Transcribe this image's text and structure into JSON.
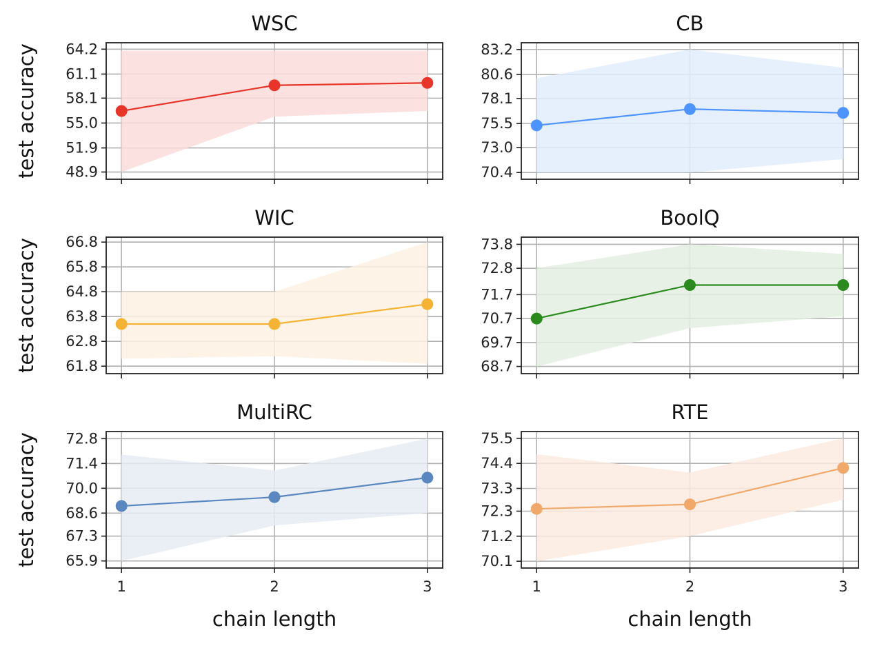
{
  "chart_data": [
    {
      "type": "line",
      "title": "WSC",
      "xlabel": "",
      "ylabel": "test accuracy",
      "x": [
        1,
        2,
        3
      ],
      "values": [
        56.5,
        59.7,
        60.0
      ],
      "band_lower": [
        48.9,
        55.8,
        56.5
      ],
      "band_upper": [
        64.0,
        64.0,
        64.0
      ],
      "yticks": [
        "48.9",
        "51.9",
        "55.0",
        "58.1",
        "61.1",
        "64.2"
      ],
      "ylim": [
        48.0,
        65.0
      ],
      "color": "#e8352a",
      "band_color": "#fbdcdc"
    },
    {
      "type": "line",
      "title": "CB",
      "xlabel": "",
      "ylabel": "",
      "x": [
        1,
        2,
        3
      ],
      "values": [
        75.3,
        77.0,
        76.6
      ],
      "band_lower": [
        70.4,
        70.4,
        71.8
      ],
      "band_upper": [
        80.2,
        83.2,
        81.3
      ],
      "yticks": [
        "70.4",
        "73.0",
        "75.5",
        "78.1",
        "80.6",
        "83.2"
      ],
      "ylim": [
        69.7,
        83.9
      ],
      "color": "#4d94ff",
      "band_color": "#e2edfd"
    },
    {
      "type": "line",
      "title": "WIC",
      "xlabel": "",
      "ylabel": "test accuracy",
      "x": [
        1,
        2,
        3
      ],
      "values": [
        63.5,
        63.5,
        64.3
      ],
      "band_lower": [
        62.1,
        62.2,
        61.9
      ],
      "band_upper": [
        64.8,
        64.8,
        66.8
      ],
      "yticks": [
        "61.8",
        "62.8",
        "63.8",
        "64.8",
        "65.8",
        "66.8"
      ],
      "ylim": [
        61.5,
        67.0
      ],
      "color": "#f5b335",
      "band_color": "#fdf1e2"
    },
    {
      "type": "line",
      "title": "BoolQ",
      "xlabel": "",
      "ylabel": "",
      "x": [
        1,
        2,
        3
      ],
      "values": [
        70.7,
        72.1,
        72.1
      ],
      "band_lower": [
        68.7,
        70.3,
        70.8
      ],
      "band_upper": [
        72.8,
        73.8,
        73.4
      ],
      "yticks": [
        "68.7",
        "69.7",
        "70.7",
        "71.7",
        "72.8",
        "73.8"
      ],
      "ylim": [
        68.4,
        74.1
      ],
      "color": "#2b8a1e",
      "band_color": "#e3efe0"
    },
    {
      "type": "line",
      "title": "MultiRC",
      "xlabel": "chain length",
      "ylabel": "test accuracy",
      "x": [
        1,
        2,
        3
      ],
      "values": [
        69.0,
        69.5,
        70.6
      ],
      "band_lower": [
        65.9,
        67.9,
        68.6
      ],
      "band_upper": [
        71.9,
        71.0,
        72.8
      ],
      "yticks": [
        "65.9",
        "67.3",
        "68.6",
        "70.0",
        "71.4",
        "72.8"
      ],
      "ylim": [
        65.5,
        73.2
      ],
      "color": "#5a87bf",
      "band_color": "#e6ecf3"
    },
    {
      "type": "line",
      "title": "RTE",
      "xlabel": "chain length",
      "ylabel": "",
      "x": [
        1,
        2,
        3
      ],
      "values": [
        72.4,
        72.6,
        74.2
      ],
      "band_lower": [
        70.1,
        71.2,
        72.8
      ],
      "band_upper": [
        74.8,
        74.0,
        75.5
      ],
      "yticks": [
        "70.1",
        "71.2",
        "72.3",
        "73.3",
        "74.4",
        "75.5"
      ],
      "ylim": [
        69.8,
        75.8
      ],
      "color": "#f0a86b",
      "band_color": "#fcebe0"
    }
  ],
  "x_tick_labels": [
    "1",
    "2",
    "3"
  ]
}
